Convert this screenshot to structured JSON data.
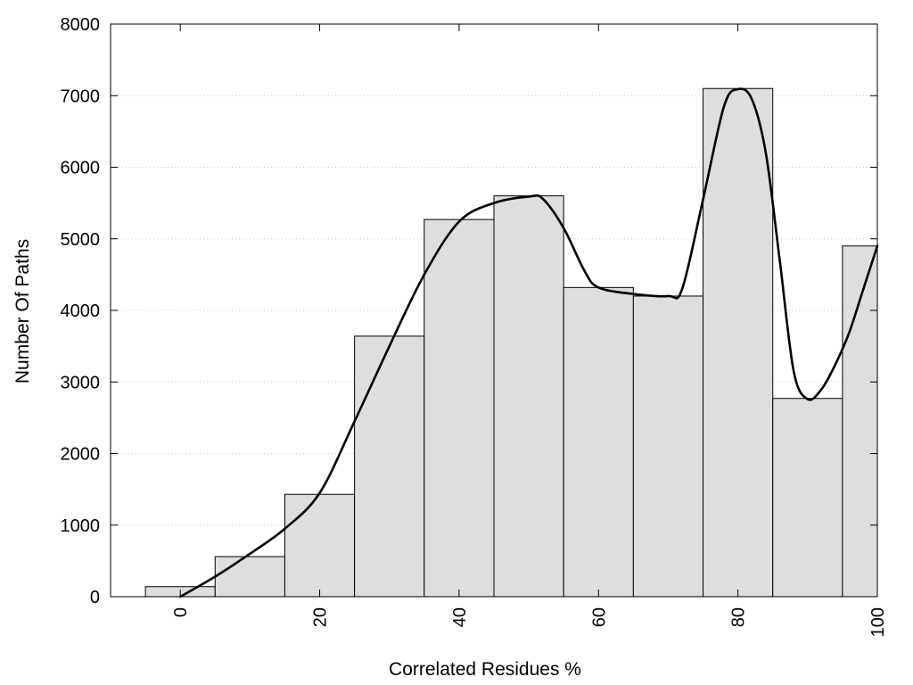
{
  "chart_data": {
    "type": "bar",
    "title": "",
    "xlabel": "Correlated Residues %",
    "ylabel": "Number Of Paths",
    "xlim": [
      -10,
      100
    ],
    "ylim": [
      0,
      8000
    ],
    "bin_width": 10,
    "x_ticks": [
      0,
      20,
      40,
      60,
      80,
      100
    ],
    "y_ticks": [
      0,
      1000,
      2000,
      3000,
      4000,
      5000,
      6000,
      7000,
      8000
    ],
    "grid": true,
    "legend": "none",
    "categories": [
      0,
      10,
      20,
      30,
      40,
      50,
      60,
      70,
      80,
      90,
      100
    ],
    "values": [
      140,
      560,
      1430,
      3640,
      5270,
      5600,
      4320,
      4200,
      7100,
      2770,
      4900
    ],
    "smooth_curve": {
      "x": [
        0,
        5,
        10,
        15,
        20,
        25,
        30,
        35,
        40,
        45,
        50,
        52,
        55,
        58,
        60,
        65,
        70,
        72,
        75,
        78,
        80,
        82,
        84,
        86,
        88,
        90,
        92,
        94,
        96,
        98,
        100
      ],
      "y": [
        0,
        280,
        600,
        950,
        1450,
        2450,
        3500,
        4500,
        5240,
        5500,
        5590,
        5560,
        5150,
        4550,
        4320,
        4230,
        4200,
        4300,
        5550,
        6850,
        7090,
        6950,
        6200,
        4700,
        3150,
        2760,
        2900,
        3250,
        3700,
        4300,
        4900
      ]
    },
    "colors": {
      "bar_fill": "#dedede",
      "bar_stroke": "#000000",
      "curve": "#000000"
    }
  }
}
